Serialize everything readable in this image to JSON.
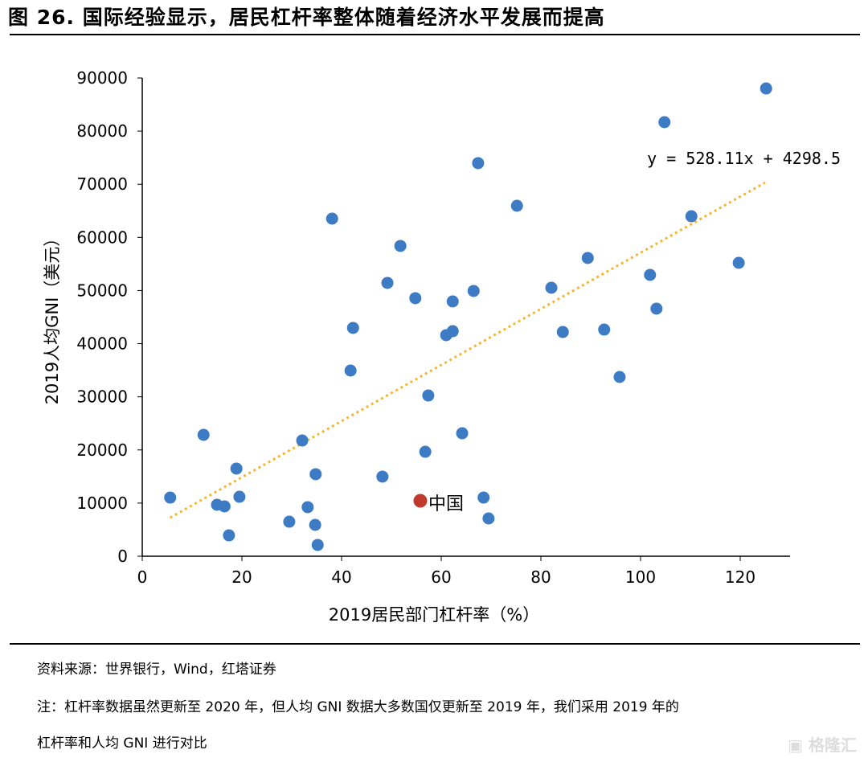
{
  "title": "图 26. 国际经验显示，居民杠杆率整体随着经济水平发展而提高",
  "source": "资料来源：世界银行，Wind，红塔证券",
  "note_line1": "注：杠杆率数据虽然更新至 2020 年，但人均 GNI 数据大多数国仅更新至 2019 年，我们采用 2019 年的",
  "note_line2": "杠杆率和人均 GNI 进行对比",
  "watermark": "格隆汇",
  "colors": {
    "points": "#3d7cc4",
    "china": "#c0392b",
    "trend": "#f5b731"
  },
  "chart_data": {
    "type": "scatter",
    "xlabel": "2019居民部门杠杆率（%）",
    "ylabel": "2019人均GNI（美元）",
    "xlim": [
      0,
      130
    ],
    "ylim": [
      0,
      90000
    ],
    "xticks": [
      0,
      20,
      40,
      60,
      80,
      100,
      120
    ],
    "yticks": [
      0,
      10000,
      20000,
      30000,
      40000,
      50000,
      60000,
      70000,
      80000,
      90000
    ],
    "grid": false,
    "trendline": {
      "label": "y = 528.11x + 4298.5",
      "slope": 528.11,
      "intercept": 4298.5,
      "x_range": [
        5.6,
        125
      ]
    },
    "highlight": {
      "label": "中国",
      "x": 55.8,
      "y": 10440
    },
    "points": [
      [
        5.6,
        11040
      ],
      [
        12.3,
        22840
      ],
      [
        15.0,
        9680
      ],
      [
        16.5,
        9380
      ],
      [
        17.4,
        3930
      ],
      [
        18.9,
        16490
      ],
      [
        19.5,
        11190
      ],
      [
        29.5,
        6500
      ],
      [
        32.1,
        21780
      ],
      [
        33.2,
        9230
      ],
      [
        34.7,
        5900
      ],
      [
        34.8,
        15430
      ],
      [
        35.2,
        2120
      ],
      [
        38.1,
        63530
      ],
      [
        41.8,
        34940
      ],
      [
        42.3,
        42960
      ],
      [
        48.2,
        14980
      ],
      [
        49.2,
        51430
      ],
      [
        51.8,
        58390
      ],
      [
        54.8,
        48560
      ],
      [
        56.8,
        19660
      ],
      [
        57.4,
        30250
      ],
      [
        61.0,
        41600
      ],
      [
        62.3,
        47950
      ],
      [
        62.3,
        42350
      ],
      [
        64.2,
        23140
      ],
      [
        66.5,
        49920
      ],
      [
        67.4,
        73970
      ],
      [
        68.5,
        11040
      ],
      [
        69.5,
        7110
      ],
      [
        75.2,
        65950
      ],
      [
        82.1,
        50520
      ],
      [
        84.4,
        42200
      ],
      [
        89.4,
        56120
      ],
      [
        92.7,
        42650
      ],
      [
        95.8,
        33730
      ],
      [
        101.9,
        52940
      ],
      [
        103.2,
        46590
      ],
      [
        104.8,
        81680
      ],
      [
        110.2,
        63980
      ],
      [
        119.7,
        55210
      ],
      [
        125.2,
        88030
      ]
    ]
  }
}
